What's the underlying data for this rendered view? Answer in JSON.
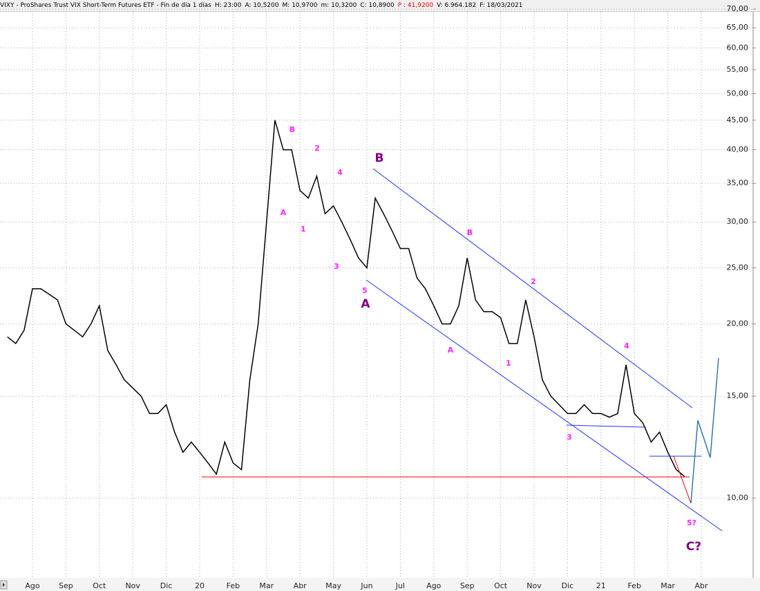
{
  "chart_data": {
    "type": "line",
    "title": "VIXY - ProShares Trust VIX Short-Term Futures ETF - Fin de día 1 días",
    "stats": [
      "H: 23:00",
      "A: 10,5200",
      "M: 10,9700",
      "m: 10,3200",
      "C: 10,8900",
      "P : 41,9200",
      "V: 6.964.182",
      "F: 18/03/2021"
    ],
    "categories": [
      null,
      null,
      null,
      "Ago",
      null,
      null,
      null,
      "Sep",
      null,
      null,
      null,
      "Oct",
      null,
      null,
      null,
      "Nov",
      null,
      null,
      null,
      "Dic",
      null,
      null,
      null,
      "20",
      null,
      null,
      null,
      "Feb",
      null,
      null,
      null,
      "Mar",
      null,
      null,
      null,
      "Abr",
      null,
      null,
      null,
      "May",
      null,
      null,
      null,
      "Jun",
      null,
      null,
      null,
      "Jul",
      null,
      null,
      null,
      "Ago",
      null,
      null,
      null,
      "Sep",
      null,
      null,
      null,
      "Oct",
      null,
      null,
      null,
      "Nov",
      null,
      null,
      null,
      "Dic",
      null,
      null,
      null,
      "21",
      null,
      null,
      null,
      "Feb",
      null,
      null,
      null,
      "Mar",
      null,
      null,
      null,
      "Abr"
    ],
    "values": [
      19,
      18.5,
      19.5,
      23,
      23,
      22.5,
      22,
      20,
      19.5,
      19,
      20,
      21.5,
      18,
      17,
      16,
      15.5,
      15,
      14,
      14,
      14.5,
      13,
      12,
      12.5,
      12,
      11.5,
      11,
      12.5,
      11.5,
      11.2,
      16,
      20,
      30,
      45,
      40,
      40,
      34,
      33,
      36,
      31,
      32,
      30,
      28,
      26,
      25,
      33,
      31,
      29,
      27,
      27,
      24,
      23,
      21.5,
      20,
      20,
      21.5,
      26,
      22,
      21,
      21,
      20.5,
      18.5,
      18.5,
      22,
      19,
      16,
      15,
      14.5,
      14,
      14,
      14.5,
      14,
      14,
      13.8,
      14,
      17,
      14,
      13.5,
      12.5,
      13,
      12,
      11.2,
      10.9,
      null,
      null
    ],
    "color": "#000000",
    "log_scale": true,
    "grid": true,
    "ylim": [
      7.3,
      71.6
    ],
    "yticks": [
      {
        "value": 10,
        "label": "10,00"
      },
      {
        "value": 15,
        "label": "15,00"
      },
      {
        "value": 20,
        "label": "20,00"
      },
      {
        "value": 25,
        "label": "25,00"
      },
      {
        "value": 30,
        "label": "30,00"
      },
      {
        "value": 35,
        "label": "35,00"
      },
      {
        "value": 40,
        "label": "40,00"
      },
      {
        "value": 45,
        "label": "45,00"
      },
      {
        "value": 50,
        "label": "50,00"
      },
      {
        "value": 55,
        "label": "55,00"
      },
      {
        "value": 60,
        "label": "60,00"
      },
      {
        "value": 65,
        "label": "65,00"
      },
      {
        "value": 70,
        "label": "70,00"
      }
    ],
    "annotations": [
      "B",
      "A",
      "2",
      "1",
      "4",
      "3",
      "5",
      "A",
      "B",
      "B",
      "A",
      "1",
      "2",
      "3",
      "4",
      "5?",
      "C?"
    ]
  }
}
